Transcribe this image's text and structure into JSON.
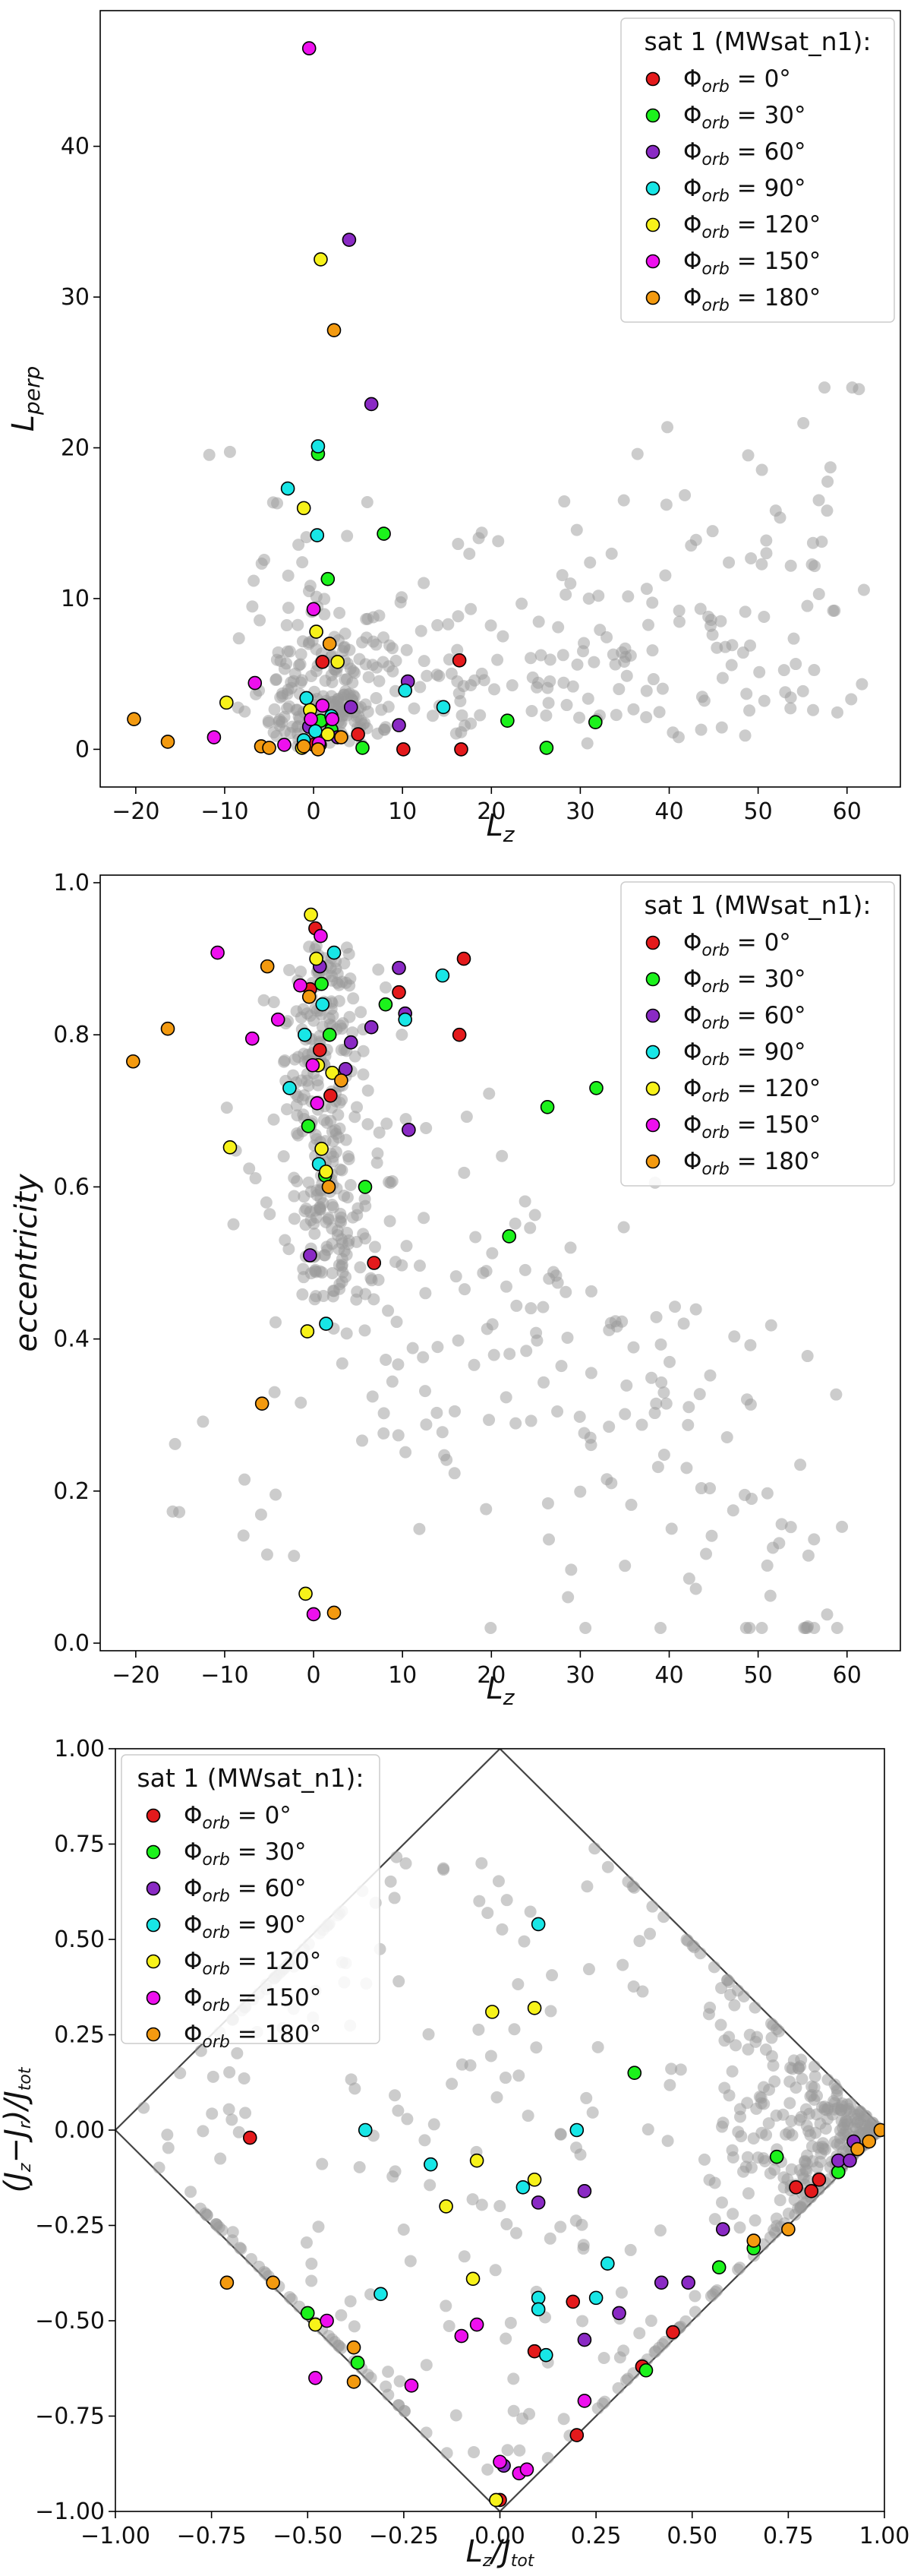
{
  "colors": {
    "background": "#9a9a9a",
    "phi0": "#e41a1c",
    "phi30": "#1cf21c",
    "phi60": "#8a2ac4",
    "phi90": "#18e6e6",
    "phi120": "#f7f21a",
    "phi150": "#ee10ee",
    "phi180": "#f39a10",
    "boundary": "#444444"
  },
  "legend": {
    "title": "sat 1 (MWsat_n1):",
    "entries": [
      {
        "symbol": "Φ",
        "sub": "orb",
        "rest": " = 0°",
        "color_key": "phi0"
      },
      {
        "symbol": "Φ",
        "sub": "orb",
        "rest": " = 30°",
        "color_key": "phi30"
      },
      {
        "symbol": "Φ",
        "sub": "orb",
        "rest": " = 60°",
        "color_key": "phi60"
      },
      {
        "symbol": "Φ",
        "sub": "orb",
        "rest": " = 90°",
        "color_key": "phi90"
      },
      {
        "symbol": "Φ",
        "sub": "orb",
        "rest": " = 120°",
        "color_key": "phi120"
      },
      {
        "symbol": "Φ",
        "sub": "orb",
        "rest": " = 150°",
        "color_key": "phi150"
      },
      {
        "symbol": "Φ",
        "sub": "orb",
        "rest": " = 180°",
        "color_key": "phi180"
      }
    ]
  },
  "chart_data": [
    {
      "type": "scatter",
      "title": "",
      "xlabel": "L",
      "xlabel_sub": "z",
      "ylabel": "L",
      "ylabel_sub": "perp",
      "xlim": [
        -24,
        66
      ],
      "ylim": [
        -2.5,
        49
      ],
      "xticks": [
        -20,
        -10,
        0,
        10,
        20,
        30,
        40,
        50,
        60
      ],
      "yticks": [
        0,
        10,
        20,
        30,
        40
      ],
      "tick_labels_x": [
        "−20",
        "−10",
        "0",
        "10",
        "20",
        "30",
        "40",
        "50",
        "60"
      ],
      "tick_labels_y": [
        "0",
        "10",
        "20",
        "30",
        "40"
      ],
      "legend_position": "top-right",
      "background": {
        "n": 420,
        "seed": 11,
        "model": "lperp"
      },
      "series": [
        {
          "name": "Φorb = 0°",
          "color_key": "phi0",
          "points": [
            [
              16.4,
              5.9
            ],
            [
              10.1,
              0.0
            ],
            [
              16.6,
              0.0
            ],
            [
              5.0,
              1.0
            ],
            [
              1.0,
              5.8
            ],
            [
              0.0,
              0.3
            ]
          ]
        },
        {
          "name": "Φorb = 30°",
          "color_key": "phi30",
          "points": [
            [
              0.5,
              19.6
            ],
            [
              7.9,
              14.3
            ],
            [
              1.6,
              11.3
            ],
            [
              21.8,
              1.9
            ],
            [
              31.7,
              1.8
            ],
            [
              26.2,
              0.1
            ],
            [
              5.5,
              0.1
            ],
            [
              0.8,
              1.9
            ],
            [
              2.0,
              1.3
            ]
          ]
        },
        {
          "name": "Φorb = 60°",
          "color_key": "phi60",
          "points": [
            [
              4.0,
              33.8
            ],
            [
              6.5,
              22.9
            ],
            [
              10.6,
              4.5
            ],
            [
              9.6,
              1.6
            ],
            [
              4.2,
              2.8
            ],
            [
              -0.5,
              1.5
            ],
            [
              2.7,
              0.8
            ]
          ]
        },
        {
          "name": "Φorb = 90°",
          "color_key": "phi90",
          "points": [
            [
              0.5,
              20.1
            ],
            [
              -2.9,
              17.3
            ],
            [
              0.4,
              14.2
            ],
            [
              10.3,
              3.9
            ],
            [
              14.6,
              2.8
            ],
            [
              -0.8,
              3.4
            ],
            [
              2.0,
              2.2
            ],
            [
              0.2,
              1.2
            ],
            [
              -1.1,
              0.6
            ]
          ]
        },
        {
          "name": "Φorb = 120°",
          "color_key": "phi120",
          "points": [
            [
              0.8,
              32.5
            ],
            [
              -1.1,
              16.0
            ],
            [
              0.3,
              7.8
            ],
            [
              2.7,
              5.8
            ],
            [
              -9.8,
              3.1
            ],
            [
              -0.4,
              2.6
            ],
            [
              0.7,
              0.3
            ],
            [
              -1.3,
              0.1
            ],
            [
              1.6,
              1.0
            ]
          ]
        },
        {
          "name": "Φorb = 150°",
          "color_key": "phi150",
          "points": [
            [
              -0.5,
              46.5
            ],
            [
              0.0,
              9.3
            ],
            [
              -6.6,
              4.4
            ],
            [
              1.0,
              2.9
            ],
            [
              -11.2,
              0.8
            ],
            [
              -3.3,
              0.3
            ],
            [
              -0.3,
              2.0
            ],
            [
              0.6,
              0.4
            ],
            [
              2.1,
              2.0
            ]
          ]
        },
        {
          "name": "Φorb = 180°",
          "color_key": "phi180",
          "points": [
            [
              2.3,
              27.8
            ],
            [
              -20.2,
              2.0
            ],
            [
              -16.4,
              0.5
            ],
            [
              -5.9,
              0.2
            ],
            [
              -5.0,
              0.1
            ],
            [
              1.8,
              7.0
            ],
            [
              -1.1,
              0.2
            ],
            [
              0.5,
              0.0
            ],
            [
              3.1,
              0.8
            ]
          ]
        }
      ]
    },
    {
      "type": "scatter",
      "title": "",
      "xlabel": "L",
      "xlabel_sub": "z",
      "ylabel": "eccentricity",
      "ylabel_sub": "",
      "xlim": [
        -24,
        66
      ],
      "ylim": [
        -0.01,
        1.01
      ],
      "xticks": [
        -20,
        -10,
        0,
        10,
        20,
        30,
        40,
        50,
        60
      ],
      "yticks": [
        0.0,
        0.2,
        0.4,
        0.6,
        0.8,
        1.0
      ],
      "tick_labels_x": [
        "−20",
        "−10",
        "0",
        "10",
        "20",
        "30",
        "40",
        "50",
        "60"
      ],
      "tick_labels_y": [
        "0.0",
        "0.2",
        "0.4",
        "0.6",
        "0.8",
        "1.0"
      ],
      "legend_position": "top-right",
      "background": {
        "n": 480,
        "seed": 23,
        "model": "ecc"
      },
      "series": [
        {
          "name": "Φorb = 0°",
          "color_key": "phi0",
          "points": [
            [
              16.9,
              0.9
            ],
            [
              9.6,
              0.856
            ],
            [
              16.4,
              0.8
            ],
            [
              6.8,
              0.5
            ],
            [
              0.2,
              0.94
            ],
            [
              1.9,
              0.72
            ],
            [
              -0.4,
              0.86
            ],
            [
              0.7,
              0.78
            ]
          ]
        },
        {
          "name": "Φorb = 30°",
          "color_key": "phi30",
          "points": [
            [
              31.8,
              0.73
            ],
            [
              26.3,
              0.705
            ],
            [
              22.0,
              0.535
            ],
            [
              8.1,
              0.84
            ],
            [
              5.8,
              0.6
            ],
            [
              1.3,
              0.615
            ],
            [
              -0.6,
              0.68
            ],
            [
              1.8,
              0.8
            ],
            [
              0.9,
              0.867
            ]
          ]
        },
        {
          "name": "Φorb = 60°",
          "color_key": "phi60",
          "points": [
            [
              9.6,
              0.888
            ],
            [
              10.3,
              0.828
            ],
            [
              6.5,
              0.81
            ],
            [
              4.2,
              0.79
            ],
            [
              10.7,
              0.675
            ],
            [
              3.6,
              0.755
            ],
            [
              -0.4,
              0.51
            ],
            [
              0.7,
              0.89
            ]
          ]
        },
        {
          "name": "Φorb = 90°",
          "color_key": "phi90",
          "points": [
            [
              14.5,
              0.878
            ],
            [
              10.3,
              0.82
            ],
            [
              2.3,
              0.908
            ],
            [
              1.0,
              0.84
            ],
            [
              -1.0,
              0.8
            ],
            [
              -2.7,
              0.73
            ],
            [
              0.6,
              0.63
            ],
            [
              1.4,
              0.42
            ]
          ]
        },
        {
          "name": "Φorb = 120°",
          "color_key": "phi120",
          "points": [
            [
              -0.3,
              0.958
            ],
            [
              0.3,
              0.9
            ],
            [
              2.1,
              0.75
            ],
            [
              -9.4,
              0.652
            ],
            [
              0.9,
              0.65
            ],
            [
              1.4,
              0.62
            ],
            [
              -0.7,
              0.41
            ],
            [
              -0.9,
              0.065
            ],
            [
              0.5,
              0.76
            ]
          ]
        },
        {
          "name": "Φorb = 150°",
          "color_key": "phi150",
          "points": [
            [
              -10.8,
              0.908
            ],
            [
              -4.0,
              0.82
            ],
            [
              -6.9,
              0.795
            ],
            [
              0.8,
              0.93
            ],
            [
              -0.1,
              0.76
            ],
            [
              0.4,
              0.71
            ],
            [
              0.0,
              0.038
            ],
            [
              -1.5,
              0.865
            ]
          ]
        },
        {
          "name": "Φorb = 180°",
          "color_key": "phi180",
          "points": [
            [
              -5.2,
              0.89
            ],
            [
              -16.4,
              0.808
            ],
            [
              -20.3,
              0.765
            ],
            [
              -5.8,
              0.315
            ],
            [
              2.3,
              0.04
            ],
            [
              3.1,
              0.74
            ],
            [
              1.7,
              0.6
            ],
            [
              -0.5,
              0.85
            ]
          ]
        }
      ]
    },
    {
      "type": "scatter",
      "title": "",
      "xlabel": "L_z/J_tot",
      "xlabel_sub": "",
      "ylabel": "(J_z−J_r)/J_tot",
      "ylabel_sub": "",
      "xlim": [
        -1.0,
        1.0
      ],
      "ylim": [
        -1.0,
        1.0
      ],
      "xticks": [
        -1.0,
        -0.75,
        -0.5,
        -0.25,
        0.0,
        0.25,
        0.5,
        0.75,
        1.0
      ],
      "yticks": [
        -1.0,
        -0.75,
        -0.5,
        -0.25,
        0.0,
        0.25,
        0.5,
        0.75,
        1.0
      ],
      "tick_labels_x": [
        "−1.00",
        "−0.75",
        "−0.50",
        "−0.25",
        "0.00",
        "0.25",
        "0.50",
        "0.75",
        "1.00"
      ],
      "tick_labels_y": [
        "−1.00",
        "−0.75",
        "−0.50",
        "−0.25",
        "0.00",
        "0.25",
        "0.50",
        "0.75",
        "1.00"
      ],
      "legend_position": "top-left",
      "boundary": "diamond |x|+|y|=1",
      "background": {
        "n": 560,
        "seed": 37,
        "model": "action"
      },
      "series": [
        {
          "name": "Φorb = 0°",
          "color_key": "phi0",
          "points": [
            [
              -0.65,
              -0.02
            ],
            [
              0.77,
              -0.15
            ],
            [
              0.81,
              -0.16
            ],
            [
              0.83,
              -0.13
            ],
            [
              0.88,
              -0.11
            ],
            [
              0.45,
              -0.53
            ],
            [
              0.37,
              -0.62
            ],
            [
              0.19,
              -0.45
            ],
            [
              0.2,
              -0.8
            ],
            [
              0.09,
              -0.58
            ],
            [
              0.0,
              -0.97
            ]
          ]
        },
        {
          "name": "Φorb = 30°",
          "color_key": "phi30",
          "points": [
            [
              0.35,
              0.15
            ],
            [
              0.72,
              -0.07
            ],
            [
              0.88,
              -0.11
            ],
            [
              0.66,
              -0.31
            ],
            [
              0.57,
              -0.36
            ],
            [
              0.38,
              -0.63
            ],
            [
              -0.5,
              -0.48
            ],
            [
              -0.37,
              -0.61
            ]
          ]
        },
        {
          "name": "Φorb = 60°",
          "color_key": "phi60",
          "points": [
            [
              0.88,
              -0.08
            ],
            [
              0.91,
              -0.08
            ],
            [
              0.92,
              -0.03
            ],
            [
              0.58,
              -0.26
            ],
            [
              0.49,
              -0.4
            ],
            [
              0.42,
              -0.4
            ],
            [
              0.31,
              -0.48
            ],
            [
              0.22,
              -0.55
            ],
            [
              0.22,
              -0.16
            ],
            [
              0.1,
              -0.19
            ],
            [
              0.01,
              -0.88
            ]
          ]
        },
        {
          "name": "Φorb = 90°",
          "color_key": "phi90",
          "points": [
            [
              0.1,
              0.54
            ],
            [
              -0.35,
              0.0
            ],
            [
              -0.18,
              -0.09
            ],
            [
              0.06,
              -0.15
            ],
            [
              0.2,
              0.0
            ],
            [
              0.25,
              -0.44
            ],
            [
              0.28,
              -0.35
            ],
            [
              0.1,
              -0.44
            ],
            [
              0.1,
              -0.47
            ],
            [
              0.12,
              -0.59
            ],
            [
              -0.31,
              -0.43
            ]
          ]
        },
        {
          "name": "Φorb = 120°",
          "color_key": "phi120",
          "points": [
            [
              -0.02,
              0.31
            ],
            [
              0.09,
              0.32
            ],
            [
              0.09,
              -0.13
            ],
            [
              -0.14,
              -0.2
            ],
            [
              -0.06,
              -0.08
            ],
            [
              -0.07,
              -0.39
            ],
            [
              -0.48,
              -0.51
            ],
            [
              -0.01,
              -0.97
            ]
          ]
        },
        {
          "name": "Φorb = 150°",
          "color_key": "phi150",
          "points": [
            [
              -0.1,
              -0.54
            ],
            [
              -0.06,
              -0.51
            ],
            [
              -0.45,
              -0.5
            ],
            [
              -0.48,
              -0.65
            ],
            [
              -0.23,
              -0.67
            ],
            [
              0.22,
              -0.71
            ],
            [
              0.0,
              -0.87
            ],
            [
              0.05,
              -0.9
            ],
            [
              0.07,
              -0.89
            ]
          ]
        },
        {
          "name": "Φorb = 180°",
          "color_key": "phi180",
          "points": [
            [
              -0.59,
              -0.4
            ],
            [
              0.66,
              -0.29
            ],
            [
              0.75,
              -0.26
            ],
            [
              0.96,
              -0.03
            ],
            [
              0.93,
              -0.05
            ],
            [
              0.99,
              0.0
            ],
            [
              -0.38,
              -0.57
            ],
            [
              -0.38,
              -0.66
            ],
            [
              -0.71,
              -0.4
            ]
          ]
        }
      ]
    }
  ]
}
